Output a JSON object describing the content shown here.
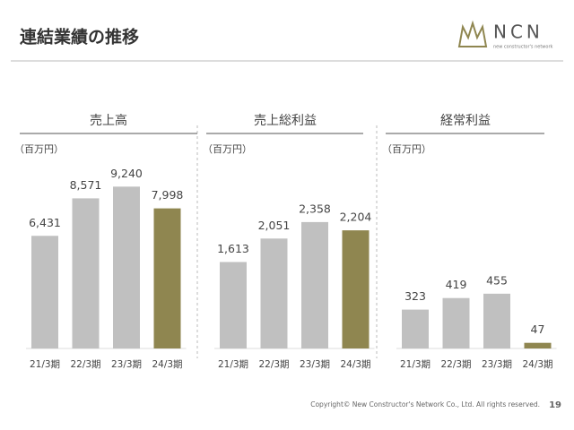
{
  "header": {
    "title": "連結業績の推移"
  },
  "logo": {
    "name": "NCN",
    "tagline": "new constructor's network"
  },
  "footer": {
    "copyright": "Copyright© New Constructor's Network Co., Ltd. All rights reserved.",
    "page": "19"
  },
  "chart_data": [
    {
      "type": "bar",
      "title": "売上高",
      "unit_label": "（百万円）",
      "categories": [
        "21/3期",
        "22/3期",
        "23/3期",
        "24/3期"
      ],
      "values": [
        6431,
        8571,
        9240,
        7998
      ],
      "value_labels": [
        "6,431",
        "8,571",
        "9,240",
        "7,998"
      ],
      "colors": [
        "#c0c0c0",
        "#c0c0c0",
        "#c0c0c0",
        "#8f8650"
      ],
      "ylim": [
        0,
        11200
      ]
    },
    {
      "type": "bar",
      "title": "売上総利益",
      "unit_label": "（百万円）",
      "categories": [
        "21/3期",
        "22/3期",
        "23/3期",
        "24/3期"
      ],
      "values": [
        1613,
        2051,
        2358,
        2204
      ],
      "value_labels": [
        "1,613",
        "2,051",
        "2,358",
        "2,204"
      ],
      "colors": [
        "#c0c0c0",
        "#c0c0c0",
        "#c0c0c0",
        "#8f8650"
      ],
      "ylim": [
        0,
        3660
      ]
    },
    {
      "type": "bar",
      "title": "経常利益",
      "unit_label": "（百万円）",
      "categories": [
        "21/3期",
        "22/3期",
        "23/3期",
        "24/3期"
      ],
      "values": [
        323,
        419,
        455,
        47
      ],
      "colors": [
        "#c0c0c0",
        "#c0c0c0",
        "#c0c0c0",
        "#8f8650"
      ],
      "ylim": [
        0,
        1630
      ]
    }
  ]
}
